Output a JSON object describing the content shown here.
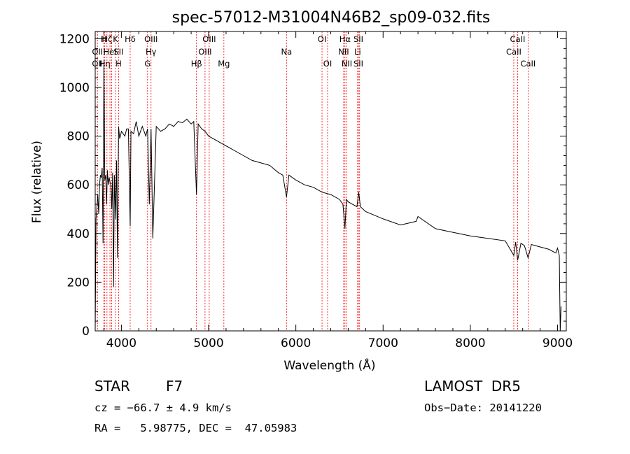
{
  "chart_data": {
    "type": "line",
    "title": "spec-57012-M31004N46B2_sp09-032.fits",
    "xlabel": "Wavelength (Å)",
    "ylabel": "Flux (relative)",
    "xlim": [
      3700,
      9100
    ],
    "ylim": [
      0,
      1230
    ],
    "xticks": [
      4000,
      5000,
      6000,
      7000,
      8000,
      9000
    ],
    "yticks": [
      0,
      200,
      400,
      600,
      800,
      1000,
      1200
    ],
    "grid": false,
    "series": [
      {
        "x": [
          3700,
          3710,
          3720,
          3730,
          3740,
          3750,
          3760,
          3770,
          3780,
          3790,
          3800,
          3810,
          3820,
          3830,
          3840,
          3850,
          3860,
          3870,
          3880,
          3890,
          3900,
          3910,
          3920,
          3933,
          3945,
          3955,
          3968,
          3980,
          3990,
          4000,
          4020,
          4040,
          4060,
          4080,
          4101,
          4110,
          4140,
          4170,
          4200,
          4240,
          4280,
          4300,
          4320,
          4340,
          4360,
          4400,
          4450,
          4500,
          4550,
          4600,
          4650,
          4700,
          4750,
          4800,
          4830,
          4861,
          4880,
          4920,
          4960,
          5000,
          5050,
          5100,
          5150,
          5200,
          5300,
          5400,
          5500,
          5600,
          5700,
          5800,
          5850,
          5893,
          5920,
          6000,
          6100,
          6200,
          6300,
          6400,
          6500,
          6540,
          6563,
          6580,
          6600,
          6650,
          6700,
          6720,
          6740,
          6800,
          7000,
          7200,
          7380,
          7400,
          7600,
          7800,
          8000,
          8200,
          8400,
          8498,
          8520,
          8542,
          8580,
          8620,
          8662,
          8700,
          8800,
          8900,
          8980,
          9000,
          9020,
          9030,
          9040
        ],
        "y": [
          0,
          460,
          510,
          560,
          480,
          600,
          640,
          630,
          670,
          360,
          1100,
          620,
          640,
          520,
          660,
          600,
          630,
          610,
          600,
          500,
          650,
          180,
          640,
          460,
          700,
          300,
          840,
          790,
          800,
          820,
          810,
          800,
          830,
          830,
          430,
          820,
          810,
          860,
          800,
          840,
          800,
          830,
          520,
          830,
          380,
          840,
          820,
          830,
          850,
          840,
          860,
          855,
          870,
          850,
          860,
          560,
          850,
          830,
          820,
          800,
          790,
          780,
          770,
          760,
          740,
          720,
          700,
          690,
          680,
          650,
          640,
          550,
          640,
          620,
          600,
          590,
          570,
          560,
          540,
          520,
          420,
          540,
          530,
          520,
          510,
          570,
          510,
          490,
          460,
          435,
          450,
          470,
          420,
          405,
          390,
          380,
          370,
          310,
          365,
          290,
          360,
          350,
          300,
          355,
          345,
          335,
          320,
          340,
          310,
          0,
          100
        ]
      }
    ],
    "line_marks": [
      {
        "x": 3726,
        "labels": [
          "",
          "OII",
          "OII"
        ]
      },
      {
        "x": 3798,
        "labels": [
          "H",
          "",
          ""
        ]
      },
      {
        "x": 3810,
        "labels": [
          "",
          "",
          "Hη"
        ]
      },
      {
        "x": 3835,
        "labels": [
          "Hζ",
          "",
          ""
        ]
      },
      {
        "x": 3869,
        "labels": [
          "",
          "HeI",
          ""
        ]
      },
      {
        "x": 3889,
        "labels": [
          "",
          "",
          ""
        ]
      },
      {
        "x": 3933,
        "labels": [
          "K",
          "",
          ""
        ]
      },
      {
        "x": 3968,
        "labels": [
          "",
          "SII",
          "H"
        ]
      },
      {
        "x": 4101,
        "labels": [
          "Hδ",
          "",
          ""
        ]
      },
      {
        "x": 4300,
        "labels": [
          "",
          "",
          "G"
        ]
      },
      {
        "x": 4340,
        "labels": [
          "OIII",
          "Hγ",
          ""
        ]
      },
      {
        "x": 4861,
        "labels": [
          "",
          "",
          "Hβ"
        ]
      },
      {
        "x": 4959,
        "labels": [
          "",
          "OIII",
          ""
        ]
      },
      {
        "x": 5007,
        "labels": [
          "OIII",
          "",
          ""
        ]
      },
      {
        "x": 5175,
        "labels": [
          "",
          "",
          "Mg"
        ]
      },
      {
        "x": 5893,
        "labels": [
          "",
          "Na",
          ""
        ]
      },
      {
        "x": 6300,
        "labels": [
          "OI",
          "",
          ""
        ]
      },
      {
        "x": 6364,
        "labels": [
          "",
          "",
          "OI"
        ]
      },
      {
        "x": 6548,
        "labels": [
          "",
          "NII",
          ""
        ]
      },
      {
        "x": 6563,
        "labels": [
          "Hα",
          "",
          ""
        ]
      },
      {
        "x": 6584,
        "labels": [
          "",
          "",
          "NII"
        ]
      },
      {
        "x": 6708,
        "labels": [
          "",
          "Li",
          ""
        ]
      },
      {
        "x": 6717,
        "labels": [
          "SII",
          "",
          "SII"
        ]
      },
      {
        "x": 6731,
        "labels": [
          "",
          "",
          ""
        ]
      },
      {
        "x": 8498,
        "labels": [
          "",
          "CaII",
          ""
        ]
      },
      {
        "x": 8542,
        "labels": [
          "CaII",
          "",
          ""
        ]
      },
      {
        "x": 8662,
        "labels": [
          "",
          "",
          "CaII"
        ]
      }
    ],
    "line_mark_color": "#ff0000",
    "spectrum_color": "#000000"
  },
  "info": {
    "object_type": "STAR",
    "subclass": "F7",
    "survey": "LAMOST  DR5",
    "redshift": "cz = −66.7 ± 4.9 km/s",
    "obs_date": "Obs−Date: 20141220",
    "coords": "RA =   5.98775, DEC =  47.05983"
  }
}
